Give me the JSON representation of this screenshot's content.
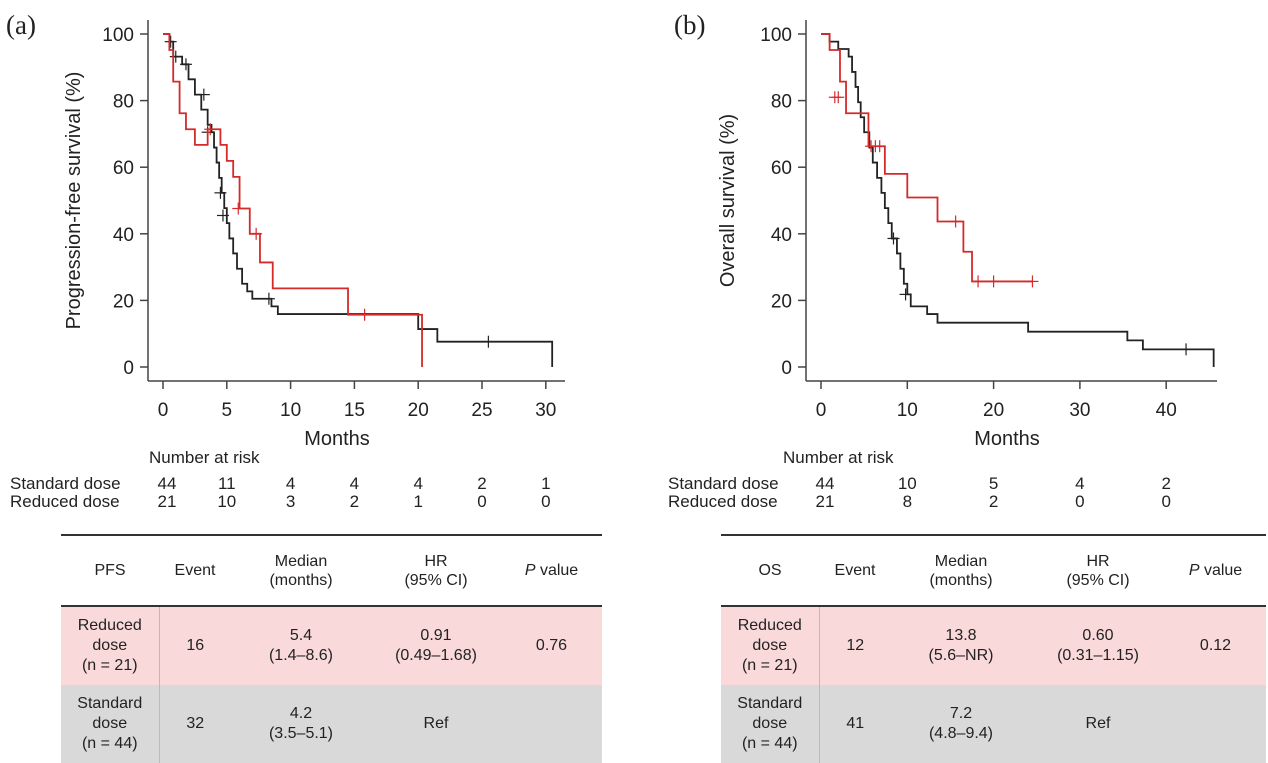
{
  "colors": {
    "standard": "#222222",
    "reduced": "#d42a2a",
    "reduced_row": "#f9d9d9",
    "standard_row": "#d9d9d9"
  },
  "chart_data": [
    {
      "type": "line",
      "panel": "(a)",
      "title": "",
      "xlabel": "Months",
      "ylabel": "Progression-free survival (%)",
      "xlim": [
        0,
        31
      ],
      "ylim": [
        0,
        100
      ],
      "xticks": [
        0,
        5,
        10,
        15,
        20,
        25,
        30
      ],
      "yticks": [
        0,
        20,
        40,
        60,
        80,
        100
      ],
      "grid": false,
      "series": [
        {
          "name": "Standard dose",
          "color": "#222222",
          "steps": [
            [
              0,
              100
            ],
            [
              0.5,
              97.7
            ],
            [
              0.8,
              93.2
            ],
            [
              1.5,
              90.9
            ],
            [
              2.0,
              86.4
            ],
            [
              2.5,
              81.8
            ],
            [
              3.0,
              77.3
            ],
            [
              3.5,
              72.7
            ],
            [
              3.8,
              70.5
            ],
            [
              4.0,
              65.9
            ],
            [
              4.2,
              61.4
            ],
            [
              4.4,
              56.8
            ],
            [
              4.6,
              52.3
            ],
            [
              4.8,
              47.7
            ],
            [
              5.0,
              43.2
            ],
            [
              5.2,
              38.6
            ],
            [
              5.5,
              34.1
            ],
            [
              5.8,
              29.5
            ],
            [
              6.2,
              25.0
            ],
            [
              6.6,
              22.7
            ],
            [
              7.0,
              20.5
            ],
            [
              8.5,
              18.2
            ],
            [
              9.0,
              15.9
            ],
            [
              20.0,
              11.4
            ],
            [
              21.5,
              7.6
            ],
            [
              30.5,
              0
            ]
          ],
          "censor": [
            [
              0.6,
              97.7
            ],
            [
              1.0,
              93.2
            ],
            [
              1.8,
              90.9
            ],
            [
              3.2,
              81.8
            ],
            [
              3.5,
              70.5
            ],
            [
              4.5,
              52.3
            ],
            [
              4.7,
              45.5
            ],
            [
              8.3,
              20.5
            ],
            [
              25.5,
              7.6
            ]
          ]
        },
        {
          "name": "Reduced dose",
          "color": "#d42a2a",
          "steps": [
            [
              0,
              100
            ],
            [
              0.5,
              95.2
            ],
            [
              0.8,
              85.7
            ],
            [
              1.3,
              76.2
            ],
            [
              1.8,
              71.4
            ],
            [
              2.5,
              66.7
            ],
            [
              3.5,
              71.4
            ],
            [
              4.5,
              66.7
            ],
            [
              5.0,
              61.9
            ],
            [
              5.5,
              57.1
            ],
            [
              6.0,
              47.6
            ],
            [
              6.8,
              40.0
            ],
            [
              7.6,
              31.4
            ],
            [
              8.6,
              23.6
            ],
            [
              14.5,
              15.7
            ],
            [
              20.3,
              0
            ]
          ],
          "censor": [
            [
              3.7,
              71.4
            ],
            [
              5.9,
              47.6
            ],
            [
              7.3,
              40.0
            ],
            [
              15.8,
              15.7
            ]
          ]
        }
      ]
    },
    {
      "type": "line",
      "panel": "(b)",
      "title": "",
      "xlabel": "Months",
      "ylabel": "Overall survival (%)",
      "xlim": [
        0,
        46
      ],
      "ylim": [
        0,
        100
      ],
      "xticks": [
        0,
        10,
        20,
        30,
        40
      ],
      "yticks": [
        0,
        20,
        40,
        60,
        80,
        100
      ],
      "grid": false,
      "series": [
        {
          "name": "Standard dose",
          "color": "#222222",
          "steps": [
            [
              0,
              100
            ],
            [
              1.0,
              97.7
            ],
            [
              2.0,
              95.5
            ],
            [
              3.2,
              93.2
            ],
            [
              3.6,
              88.6
            ],
            [
              4.0,
              84.1
            ],
            [
              4.3,
              79.5
            ],
            [
              4.6,
              75.0
            ],
            [
              5.0,
              70.5
            ],
            [
              5.6,
              65.9
            ],
            [
              6.0,
              61.4
            ],
            [
              6.5,
              56.8
            ],
            [
              7.0,
              52.3
            ],
            [
              7.4,
              47.7
            ],
            [
              7.8,
              43.2
            ],
            [
              8.2,
              38.6
            ],
            [
              8.8,
              34.1
            ],
            [
              9.2,
              29.5
            ],
            [
              9.6,
              25.0
            ],
            [
              10.0,
              21.8
            ],
            [
              10.4,
              18.2
            ],
            [
              12.3,
              15.9
            ],
            [
              13.5,
              13.3
            ],
            [
              24.0,
              10.6
            ],
            [
              35.5,
              8.0
            ],
            [
              37.3,
              5.3
            ],
            [
              45.5,
              0
            ]
          ],
          "censor": [
            [
              8.4,
              38.6
            ],
            [
              9.8,
              21.8
            ],
            [
              42.3,
              5.3
            ]
          ]
        },
        {
          "name": "Reduced dose",
          "color": "#d42a2a",
          "steps": [
            [
              0,
              100
            ],
            [
              1.0,
              95.2
            ],
            [
              2.2,
              85.7
            ],
            [
              2.9,
              76.2
            ],
            [
              5.5,
              66.3
            ],
            [
              7.4,
              58.0
            ],
            [
              10.0,
              50.9
            ],
            [
              13.5,
              43.7
            ],
            [
              16.5,
              34.6
            ],
            [
              17.5,
              25.7
            ],
            [
              24.5,
              25.7
            ]
          ],
          "censor": [
            [
              1.6,
              81.0
            ],
            [
              2.0,
              81.0
            ],
            [
              5.8,
              66.3
            ],
            [
              6.3,
              66.3
            ],
            [
              6.8,
              66.3
            ],
            [
              15.6,
              43.7
            ],
            [
              18.2,
              25.7
            ],
            [
              20.0,
              25.7
            ],
            [
              24.5,
              25.7
            ]
          ]
        }
      ]
    }
  ],
  "panels": [
    {
      "label": "(a)",
      "risk_table": {
        "title": "Number at risk",
        "rows": [
          {
            "label": "Standard dose",
            "values": [
              "44",
              "11",
              "4",
              "4",
              "4",
              "2",
              "1"
            ]
          },
          {
            "label": "Reduced dose",
            "values": [
              "21",
              "10",
              "3",
              "2",
              "1",
              "0",
              "0"
            ]
          }
        ]
      },
      "summary": {
        "headers": [
          "PFS",
          "Event",
          "Median\n(months)",
          "HR\n(95% CI)",
          "value"
        ],
        "p_letter": "P",
        "rows": [
          {
            "group": "Reduced\ndose\n(n = 21)",
            "event": "16",
            "median": "5.4\n(1.4–8.6)",
            "hr": "0.91\n(0.49–1.68)",
            "p": "0.76"
          },
          {
            "group": "Standard\ndose\n(n = 44)",
            "event": "32",
            "median": "4.2\n(3.5–5.1)",
            "hr": "Ref",
            "p": ""
          }
        ]
      }
    },
    {
      "label": "(b)",
      "risk_table": {
        "title": "Number at risk",
        "rows": [
          {
            "label": "Standard dose",
            "values": [
              "44",
              "10",
              "5",
              "4",
              "2"
            ]
          },
          {
            "label": "Reduced dose",
            "values": [
              "21",
              "8",
              "2",
              "0",
              "0"
            ]
          }
        ]
      },
      "summary": {
        "headers": [
          "OS",
          "Event",
          "Median\n(months)",
          "HR\n(95% CI)",
          "value"
        ],
        "p_letter": "P",
        "rows": [
          {
            "group": "Reduced\ndose\n(n = 21)",
            "event": "12",
            "median": "13.8\n(5.6–NR)",
            "hr": "0.60\n(0.31–1.15)",
            "p": "0.12"
          },
          {
            "group": "Standard\ndose\n(n = 44)",
            "event": "41",
            "median": "7.2\n(4.8–9.4)",
            "hr": "Ref",
            "p": ""
          }
        ]
      }
    }
  ]
}
